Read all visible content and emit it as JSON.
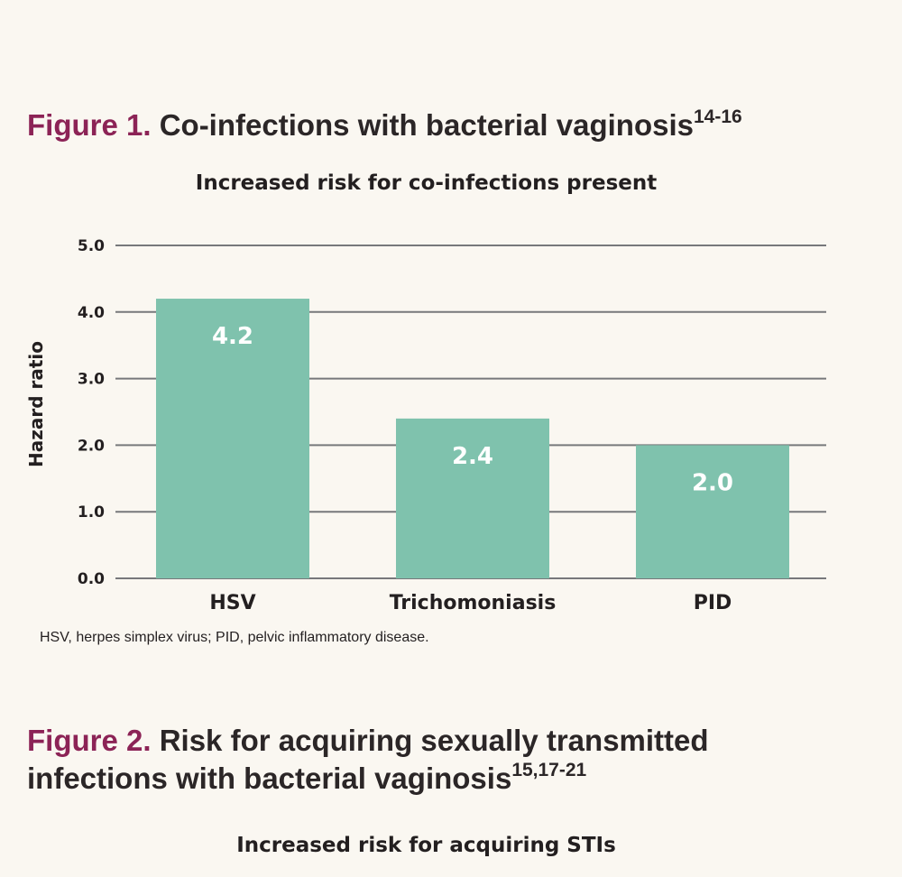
{
  "figure1": {
    "label": "Figure 1.",
    "title": "Co-infections with bacterial vaginosis",
    "refs": "14-16",
    "footnote": "HSV, herpes simplex virus; PID, pelvic inflammatory disease."
  },
  "figure2": {
    "label": "Figure 2.",
    "title": "Risk for acquiring sexually transmitted infections with bacterial vaginosis",
    "refs": "15,17-21",
    "subtitle": "Increased risk for acquiring STIs"
  },
  "colors": {
    "bar": "#7fc2ad",
    "grid": "#77787b",
    "accent": "#8c2356",
    "data_label": "#ffffff"
  },
  "chart_data": {
    "type": "bar",
    "title": "Increased risk for co-infections present",
    "xlabel": "",
    "ylabel": "Hazard ratio",
    "categories": [
      "HSV",
      "Trichomoniasis",
      "PID"
    ],
    "values": [
      4.2,
      2.4,
      2.0
    ],
    "data_labels": [
      "4.2",
      "2.4",
      "2.0"
    ],
    "yticks": [
      "0.0",
      "1.0",
      "2.0",
      "3.0",
      "4.0",
      "5.0"
    ],
    "ylim": [
      0,
      5
    ],
    "grid": true,
    "legend": "none"
  }
}
